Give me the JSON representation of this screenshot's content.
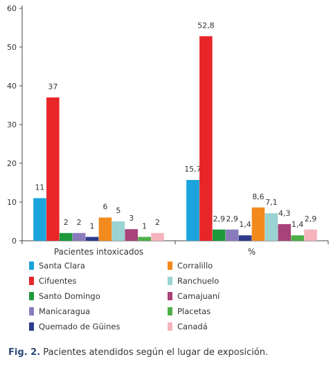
{
  "chart_data": {
    "type": "bar",
    "categories": [
      "Pacientes intoxicados",
      "%"
    ],
    "ylim": [
      0,
      60
    ],
    "yticks": [
      0,
      10,
      20,
      30,
      40,
      50,
      60
    ],
    "series": [
      {
        "name": "Santa Clara",
        "color": "#1aa3dd",
        "values": [
          11,
          15.7
        ],
        "labels": [
          "11",
          "15,7"
        ]
      },
      {
        "name": "Cifuentes",
        "color": "#e8262a",
        "values": [
          37,
          52.8
        ],
        "labels": [
          "37",
          "52,8"
        ]
      },
      {
        "name": "Santo Domingo",
        "color": "#1e9a3c",
        "values": [
          2,
          2.9
        ],
        "labels": [
          "2",
          "2,9"
        ]
      },
      {
        "name": "Manicaragua",
        "color": "#8a7bbd",
        "values": [
          2,
          2.9
        ],
        "labels": [
          "2",
          "2,9"
        ]
      },
      {
        "name": "Quemado de Güines",
        "color": "#2e3a8c",
        "values": [
          1,
          1.4
        ],
        "labels": [
          "1",
          "1,4"
        ]
      },
      {
        "name": "Corralillo",
        "color": "#f28a1e",
        "values": [
          6,
          8.6
        ],
        "labels": [
          "6",
          "8,6"
        ]
      },
      {
        "name": "Ranchuelo",
        "color": "#99d3d2",
        "values": [
          5,
          7.1
        ],
        "labels": [
          "5",
          "7,1"
        ]
      },
      {
        "name": "Camajuaní",
        "color": "#a8427a",
        "values": [
          3,
          4.3
        ],
        "labels": [
          "3",
          "4,3"
        ]
      },
      {
        "name": "Placetas",
        "color": "#4caf48",
        "values": [
          1,
          1.4
        ],
        "labels": [
          "1",
          "1,4"
        ]
      },
      {
        "name": "Canadá",
        "color": "#f5b4bc",
        "values": [
          2,
          2.9
        ],
        "labels": [
          "2",
          "2,9"
        ]
      }
    ],
    "legend_placement": "bottom",
    "grid": false
  },
  "caption": {
    "label": "Fig. 2.",
    "text": " Pacientes atendidos según el lugar de exposición."
  }
}
